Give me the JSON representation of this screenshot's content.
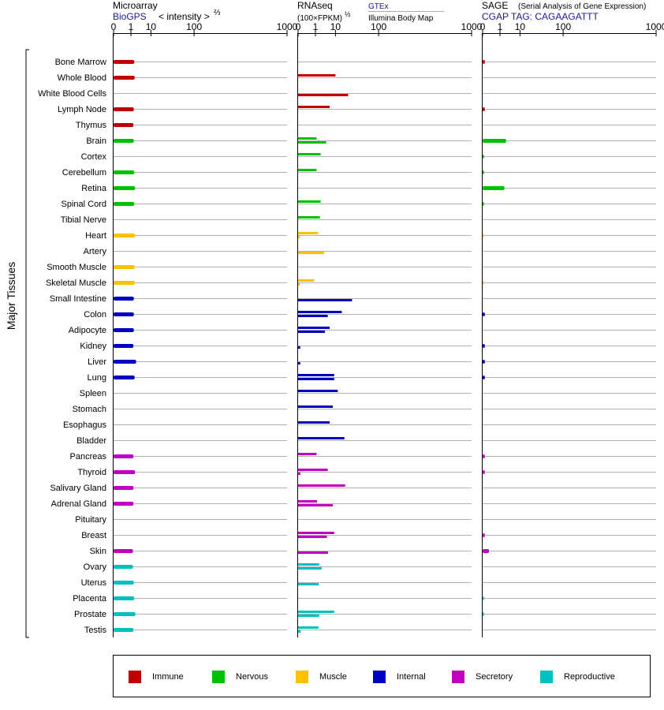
{
  "panels": [
    {
      "title": "Microarray",
      "subtitle_left": "BioGPS",
      "subtitle_right": "< intensity >",
      "exponent": "⅔"
    },
    {
      "title": "RNAseq",
      "subtitle_left": "(100×FPKM)",
      "exponent": "½",
      "source_top": "GTEx",
      "source_bottom": "Illumina Body Map"
    },
    {
      "title": "SAGE",
      "title_note": "(Serial Analysis of Gene Expression)",
      "subtitle_left": "CGAP TAG: CAGAAGATTT"
    }
  ],
  "y_axis_label": "Major Tissues",
  "tick_labels": [
    "0",
    "1",
    "10",
    "100",
    "1000"
  ],
  "group_colors": {
    "Immune": "#c00000",
    "Nervous": "#00c000",
    "Muscle": "#ffc000",
    "Internal": "#0000c0",
    "Secretory": "#c000c0",
    "Reproductive": "#00c0c0"
  },
  "legend": [
    {
      "label": "Immune",
      "color": "#c00000"
    },
    {
      "label": "Nervous",
      "color": "#00c000"
    },
    {
      "label": "Muscle",
      "color": "#ffc000"
    },
    {
      "label": "Internal",
      "color": "#0000c0"
    },
    {
      "label": "Secretory",
      "color": "#c000c0"
    },
    {
      "label": "Reproductive",
      "color": "#00c0c0"
    }
  ],
  "chart_data": {
    "type": "bar",
    "xlim": [
      0,
      1000
    ],
    "x_scale": "cube-root",
    "categories": [
      "Bone Marrow",
      "Whole Blood",
      "White Blood Cells",
      "Lymph Node",
      "Thymus",
      "Brain",
      "Cortex",
      "Cerebellum",
      "Retina",
      "Spinal Cord",
      "Tibial Nerve",
      "Heart",
      "Artery",
      "Smooth Muscle",
      "Skeletal Muscle",
      "Small Intestine",
      "Colon",
      "Adipocyte",
      "Kidney",
      "Liver",
      "Lung",
      "Spleen",
      "Stomach",
      "Esophagus",
      "Bladder",
      "Pancreas",
      "Thyroid",
      "Salivary Gland",
      "Adrenal Gland",
      "Pituitary",
      "Breast",
      "Skin",
      "Ovary",
      "Uterus",
      "Placenta",
      "Prostate",
      "Testis"
    ],
    "groups": [
      "Immune",
      "Immune",
      "Immune",
      "Immune",
      "Immune",
      "Nervous",
      "Nervous",
      "Nervous",
      "Nervous",
      "Nervous",
      "Nervous",
      "Muscle",
      "Muscle",
      "Muscle",
      "Muscle",
      "Internal",
      "Internal",
      "Internal",
      "Internal",
      "Internal",
      "Internal",
      "Internal",
      "Internal",
      "Internal",
      "Internal",
      "Secretory",
      "Secretory",
      "Secretory",
      "Secretory",
      "Secretory",
      "Secretory",
      "Secretory",
      "Reproductive",
      "Reproductive",
      "Reproductive",
      "Reproductive",
      "Reproductive"
    ],
    "series": [
      {
        "name": "Microarray",
        "values": [
          1.7,
          1.8,
          null,
          1.6,
          1.5,
          1.6,
          null,
          1.7,
          1.9,
          1.7,
          null,
          1.9,
          null,
          1.8,
          1.8,
          1.6,
          1.6,
          1.6,
          1.5,
          2.2,
          1.8,
          null,
          null,
          null,
          null,
          1.5,
          1.9,
          1.5,
          1.5,
          null,
          null,
          1.4,
          1.4,
          1.6,
          1.7,
          2.0,
          1.5
        ]
      },
      {
        "name": "GTEx",
        "values": [
          null,
          10,
          null,
          6,
          null,
          1.2,
          2.2,
          1.2,
          null,
          2.2,
          2.0,
          1.5,
          null,
          null,
          0.8,
          null,
          16,
          6,
          null,
          null,
          9,
          12,
          8,
          6,
          19,
          1.2,
          5,
          20,
          1.3,
          null,
          9,
          null,
          1.8,
          null,
          null,
          9,
          1.6
        ]
      },
      {
        "name": "Illumina Body Map",
        "values": [
          null,
          null,
          24,
          null,
          null,
          4.2,
          null,
          null,
          null,
          null,
          null,
          0.001,
          3.4,
          null,
          0.001,
          30,
          5,
          3.7,
          0.002,
          0.002,
          9,
          null,
          null,
          null,
          null,
          null,
          0.002,
          null,
          8,
          null,
          4.6,
          5.1,
          2.5,
          1.7,
          null,
          1.8,
          0.003
        ]
      },
      {
        "name": "SAGE",
        "values": [
          0.002,
          null,
          null,
          0.002,
          null,
          2.5,
          0.0005,
          0.0005,
          2.0,
          0.0005,
          null,
          0.0002,
          null,
          null,
          0.0002,
          null,
          0.002,
          null,
          0.002,
          0.002,
          0.002,
          null,
          null,
          null,
          null,
          0.002,
          0.002,
          null,
          null,
          null,
          0.002,
          0.05,
          null,
          null,
          0.0005,
          0.0005,
          null
        ]
      }
    ]
  }
}
